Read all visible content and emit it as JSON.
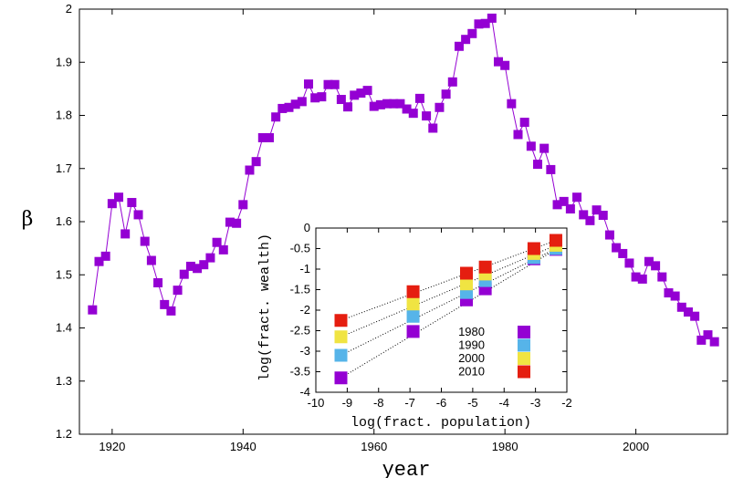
{
  "chart_data": [
    {
      "type": "line",
      "xlabel": "year",
      "ylabel": "β",
      "xlim": [
        1915,
        2014
      ],
      "ylim": [
        1.2,
        2.0
      ],
      "xticks": [
        1920,
        1940,
        1960,
        1980,
        2000
      ],
      "yticks": [
        1.2,
        1.3,
        1.4,
        1.5,
        1.6,
        1.7,
        1.8,
        1.9,
        2.0
      ],
      "ytick_labels": [
        "1.2",
        "1.3",
        "1.4",
        "1.5",
        "1.6",
        "1.7",
        "1.8",
        "1.9",
        "2"
      ],
      "grid": false,
      "series": [
        {
          "color": "#9400d3",
          "marker": "square",
          "x": [
            1917,
            1918,
            1919,
            1920,
            1921,
            1922,
            1923,
            1924,
            1925,
            1926,
            1927,
            1928,
            1929,
            1930,
            1931,
            1932,
            1933,
            1934,
            1935,
            1936,
            1937,
            1938,
            1939,
            1940,
            1941,
            1942,
            1943,
            1944,
            1945,
            1946,
            1947,
            1948,
            1949,
            1950,
            1951,
            1952,
            1953,
            1954,
            1955,
            1956,
            1957,
            1958,
            1959,
            1960,
            1961,
            1962,
            1963,
            1964,
            1965,
            1966,
            1967,
            1968,
            1969,
            1970,
            1971,
            1972,
            1973,
            1974,
            1975,
            1976,
            1977,
            1978,
            1979,
            1980,
            1981,
            1982,
            1983,
            1984,
            1985,
            1986,
            1987,
            1988,
            1989,
            1990,
            1991,
            1992,
            1993,
            1994,
            1995,
            1996,
            1997,
            1998,
            1999,
            2000,
            2001,
            2002,
            2003,
            2004,
            2005,
            2006,
            2007,
            2008,
            2009,
            2010,
            2011,
            2012
          ],
          "y": [
            1.434,
            1.525,
            1.535,
            1.634,
            1.646,
            1.577,
            1.636,
            1.613,
            1.563,
            1.527,
            1.485,
            1.444,
            1.432,
            1.471,
            1.501,
            1.516,
            1.512,
            1.519,
            1.532,
            1.561,
            1.547,
            1.599,
            1.597,
            1.632,
            1.697,
            1.713,
            1.758,
            1.758,
            1.797,
            1.813,
            1.815,
            1.821,
            1.826,
            1.859,
            1.833,
            1.835,
            1.858,
            1.858,
            1.83,
            1.816,
            1.838,
            1.842,
            1.847,
            1.817,
            1.82,
            1.822,
            1.822,
            1.822,
            1.812,
            1.804,
            1.832,
            1.799,
            1.776,
            1.815,
            1.84,
            1.863,
            1.93,
            1.943,
            1.954,
            1.972,
            1.973,
            1.983,
            1.901,
            1.894,
            1.822,
            1.764,
            1.787,
            1.742,
            1.708,
            1.738,
            1.698,
            1.632,
            1.638,
            1.624,
            1.646,
            1.613,
            1.602,
            1.622,
            1.612,
            1.575,
            1.551,
            1.54,
            1.522,
            1.496,
            1.492,
            1.525,
            1.517,
            1.496,
            1.466,
            1.46,
            1.439,
            1.43,
            1.422,
            1.377,
            1.387,
            1.374
          ]
        }
      ]
    },
    {
      "type": "scatter",
      "xlabel": "log(fract. population)",
      "ylabel": "log(fract. wealth)",
      "xlim": [
        -10,
        -2
      ],
      "ylim": [
        -4,
        0
      ],
      "xticks": [
        -10,
        -9,
        -8,
        -7,
        -6,
        -5,
        -4,
        -3,
        -2
      ],
      "xtick_labels": [
        "-10",
        "-9",
        "-8",
        "-7",
        "-6",
        "-5",
        "-4",
        "-3",
        "-2"
      ],
      "yticks": [
        -4,
        -3.5,
        -3,
        -2.5,
        -2,
        -1.5,
        -1,
        -0.5,
        0
      ],
      "ytick_labels": [
        "-4",
        "-3.5",
        "-3",
        "-2.5",
        "-2",
        "-1.5",
        "-1",
        "-0.5",
        "0"
      ],
      "legend": "bottom-right",
      "series": [
        {
          "name": "1980",
          "color": "#9400d3",
          "x": [
            -9.2,
            -6.9,
            -5.2,
            -4.6,
            -3.05,
            -2.35
          ],
          "y": [
            -3.65,
            -2.52,
            -1.75,
            -1.48,
            -0.75,
            -0.52
          ]
        },
        {
          "name": "1990",
          "color": "#56b4e9",
          "x": [
            -9.2,
            -6.9,
            -5.2,
            -4.6,
            -3.05,
            -2.35
          ],
          "y": [
            -3.1,
            -2.15,
            -1.57,
            -1.28,
            -0.72,
            -0.5
          ]
        },
        {
          "name": "2000",
          "color": "#f0e442",
          "x": [
            -9.2,
            -6.9,
            -5.2,
            -4.6,
            -3.05,
            -2.35
          ],
          "y": [
            -2.65,
            -1.85,
            -1.36,
            -1.12,
            -0.62,
            -0.42
          ]
        },
        {
          "name": "2010",
          "color": "#e51e10",
          "x": [
            -9.2,
            -6.9,
            -5.2,
            -4.6,
            -3.05,
            -2.35
          ],
          "y": [
            -2.25,
            -1.55,
            -1.1,
            -0.95,
            -0.5,
            -0.3
          ]
        }
      ]
    }
  ]
}
